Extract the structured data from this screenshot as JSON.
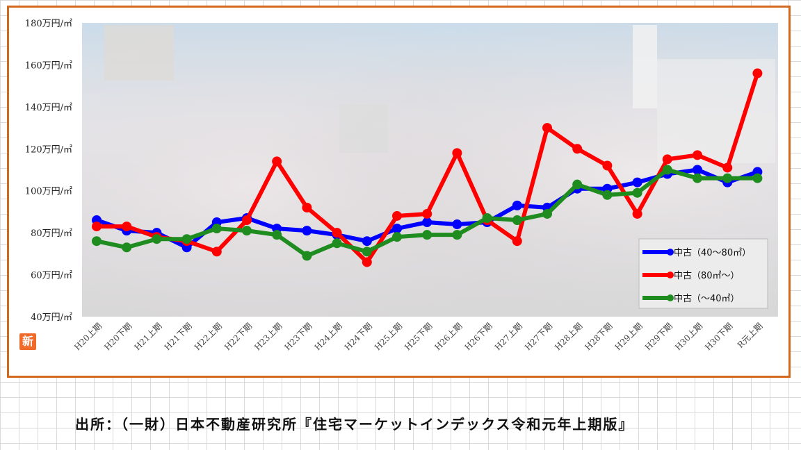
{
  "chart_data": {
    "type": "line",
    "categories": [
      "H20上期",
      "H20下期",
      "H21上期",
      "H21下期",
      "H22上期",
      "H22下期",
      "H23上期",
      "H23下期",
      "H24上期",
      "H24下期",
      "H25上期",
      "H25下期",
      "H26上期",
      "H26下期",
      "H27上期",
      "H27下期",
      "H28上期",
      "H28下期",
      "H29上期",
      "H29下期",
      "H30上期",
      "H30下期",
      "R元上期"
    ],
    "y_ticks": [
      "40万円/㎡",
      "60万円/㎡",
      "80万円/㎡",
      "100万円/㎡",
      "120万円/㎡",
      "140万円/㎡",
      "160万円/㎡",
      "180万円/㎡"
    ],
    "ylim": [
      40,
      180
    ],
    "grid": false,
    "legend_position": "bottom-right",
    "series": [
      {
        "name": "中古（40～80㎡）",
        "color": "#0000ff",
        "values": [
          86,
          81,
          80,
          73,
          85,
          87,
          82,
          81,
          79,
          76,
          82,
          85,
          84,
          85,
          93,
          92,
          101,
          101,
          104,
          108,
          110,
          104,
          109
        ]
      },
      {
        "name": "中古（80㎡～）",
        "color": "#ff0000",
        "values": [
          83,
          83,
          78,
          76,
          71,
          86,
          114,
          92,
          80,
          66,
          88,
          89,
          118,
          86,
          76,
          130,
          120,
          112,
          89,
          115,
          117,
          111,
          156
        ]
      },
      {
        "name": "中古（～40㎡）",
        "color": "#1e8c1e",
        "values": [
          76,
          73,
          77,
          77,
          82,
          81,
          79,
          69,
          75,
          71,
          78,
          79,
          79,
          87,
          86,
          89,
          103,
          98,
          99,
          110,
          106,
          106,
          106
        ]
      }
    ]
  },
  "badge_text": "新",
  "source_text": "出所：（一財）日本不動産研究所『住宅マーケットインデックス令和元年上期版』"
}
